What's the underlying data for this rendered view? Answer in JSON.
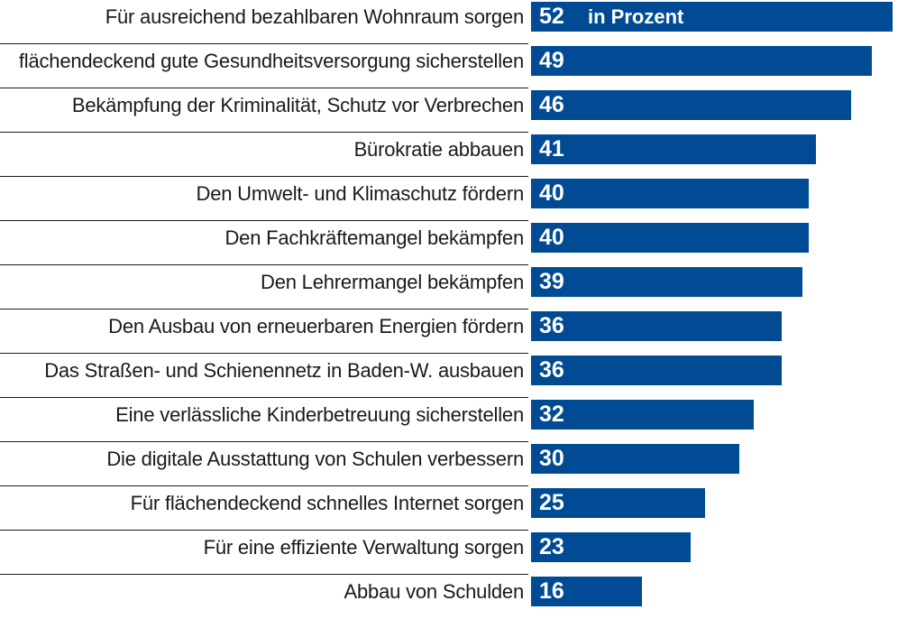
{
  "chart_data": {
    "type": "bar",
    "orientation": "horizontal",
    "unit_label": "in Prozent",
    "bar_color": "#004b93",
    "categories": [
      "Für ausreichend bezahlbaren Wohnraum sorgen",
      "flächendeckend gute Gesundheitsversorgung sicherstellen",
      "Bekämpfung der Kriminalität, Schutz vor Verbrechen",
      "Bürokratie abbauen",
      "Den Umwelt- und Klimaschutz fördern",
      "Den Fachkräftemangel bekämpfen",
      "Den Lehrermangel bekämpfen",
      "Den Ausbau von erneuerbaren Energien fördern",
      "Das Straßen- und Schienennetz in Baden-W. ausbauen",
      "Eine verlässliche Kinderbetreuung sicherstellen",
      "Die digitale Ausstattung von Schulen verbessern",
      "Für flächendeckend schnelles Internet sorgen",
      "Für eine effiziente Verwaltung sorgen",
      "Abbau von Schulden"
    ],
    "values": [
      52,
      49,
      46,
      41,
      40,
      40,
      39,
      36,
      36,
      32,
      30,
      25,
      23,
      16
    ],
    "xlim": [
      0,
      52
    ]
  }
}
